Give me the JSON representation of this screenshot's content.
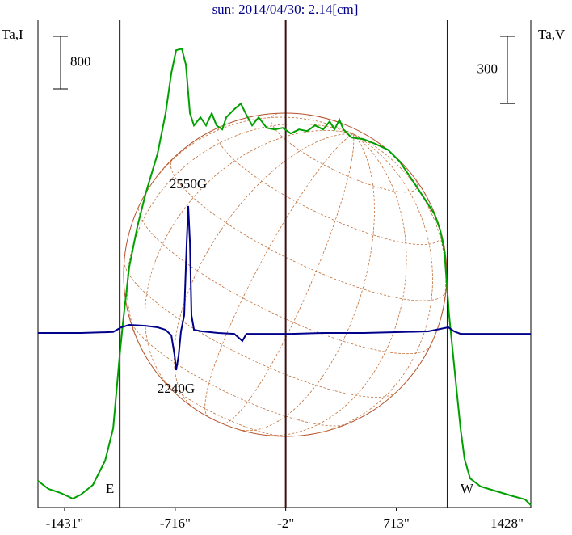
{
  "chart_data": {
    "type": "line",
    "title": "sun: 2014/04/30: 2.14[cm]",
    "y_label": "Ta,I",
    "y2_label": "Ta,V",
    "xlim": [
      -1603,
      1582
    ],
    "xticks": [
      {
        "value": -1431,
        "label": "-1431\""
      },
      {
        "value": -716,
        "label": "-716\""
      },
      {
        "value": -2,
        "label": "-2\""
      },
      {
        "value": 713,
        "label": "713\""
      },
      {
        "value": 1428,
        "label": "1428\""
      }
    ],
    "ylim": [
      0,
      7420
    ],
    "y2lim": [
      -780,
      1397
    ],
    "scale_bars": [
      {
        "value": 800,
        "axis": "y"
      },
      {
        "value": 300,
        "axis": "y2"
      }
    ],
    "vlines": [
      -1075,
      -2,
      1044
    ],
    "limb_labels": [
      {
        "text": "E",
        "x": -1075
      },
      {
        "text": "W",
        "x": 1044
      }
    ],
    "annotations": [
      {
        "text": "2550G",
        "x": -632,
        "y": 567
      },
      {
        "text": "2240G",
        "x": -710,
        "y": -166
      }
    ],
    "series": [
      {
        "name": "Ta,I",
        "color": "#00a000",
        "axis": "y",
        "x": [
          -1603,
          -1535,
          -1456,
          -1378,
          -1326,
          -1248,
          -1169,
          -1117,
          -1075,
          -1054,
          -1013,
          -960,
          -908,
          -830,
          -778,
          -741,
          -710,
          -673,
          -647,
          -621,
          -595,
          -553,
          -517,
          -480,
          -449,
          -412,
          -386,
          -334,
          -292,
          -256,
          -219,
          -177,
          -125,
          -73,
          -21,
          31,
          84,
          136,
          188,
          240,
          282,
          313,
          345,
          371,
          423,
          501,
          579,
          658,
          736,
          814,
          893,
          960,
          997,
          1023,
          1039,
          1054,
          1075,
          1101,
          1128,
          1154,
          1190,
          1258,
          1362,
          1467,
          1545,
          1582
        ],
        "values": [
          406,
          283,
          221,
          135,
          197,
          344,
          713,
          1205,
          2312,
          2804,
          3665,
          4280,
          4772,
          5387,
          6002,
          6617,
          6962,
          6986,
          6740,
          6002,
          5818,
          5941,
          5818,
          6002,
          5818,
          5756,
          5941,
          6064,
          6150,
          5978,
          5818,
          5941,
          5781,
          5756,
          5781,
          5695,
          5756,
          5732,
          5818,
          5756,
          5879,
          5756,
          5904,
          5756,
          5633,
          5609,
          5535,
          5449,
          5264,
          4994,
          4711,
          4465,
          4219,
          3911,
          3419,
          2927,
          2435,
          1820,
          1205,
          738,
          443,
          320,
          246,
          172,
          123,
          37
        ]
      },
      {
        "name": "Ta,V",
        "color": "#00008b",
        "axis": "y2",
        "x": [
          -1603,
          -1326,
          -1117,
          -1065,
          -1013,
          -908,
          -830,
          -778,
          -741,
          -720,
          -710,
          -694,
          -679,
          -658,
          -642,
          -632,
          -621,
          -611,
          -595,
          -543,
          -438,
          -334,
          -282,
          -256,
          -125,
          31,
          240,
          501,
          762,
          919,
          997,
          1049,
          1086,
          1128,
          1582
        ],
        "values": [
          0,
          0,
          4,
          25,
          36,
          32,
          25,
          14,
          -11,
          -101,
          -166,
          -101,
          7,
          79,
          404,
          567,
          404,
          79,
          14,
          7,
          0,
          -4,
          -36,
          -4,
          -4,
          -4,
          0,
          0,
          4,
          7,
          18,
          25,
          7,
          -4,
          -4
        ]
      }
    ]
  }
}
